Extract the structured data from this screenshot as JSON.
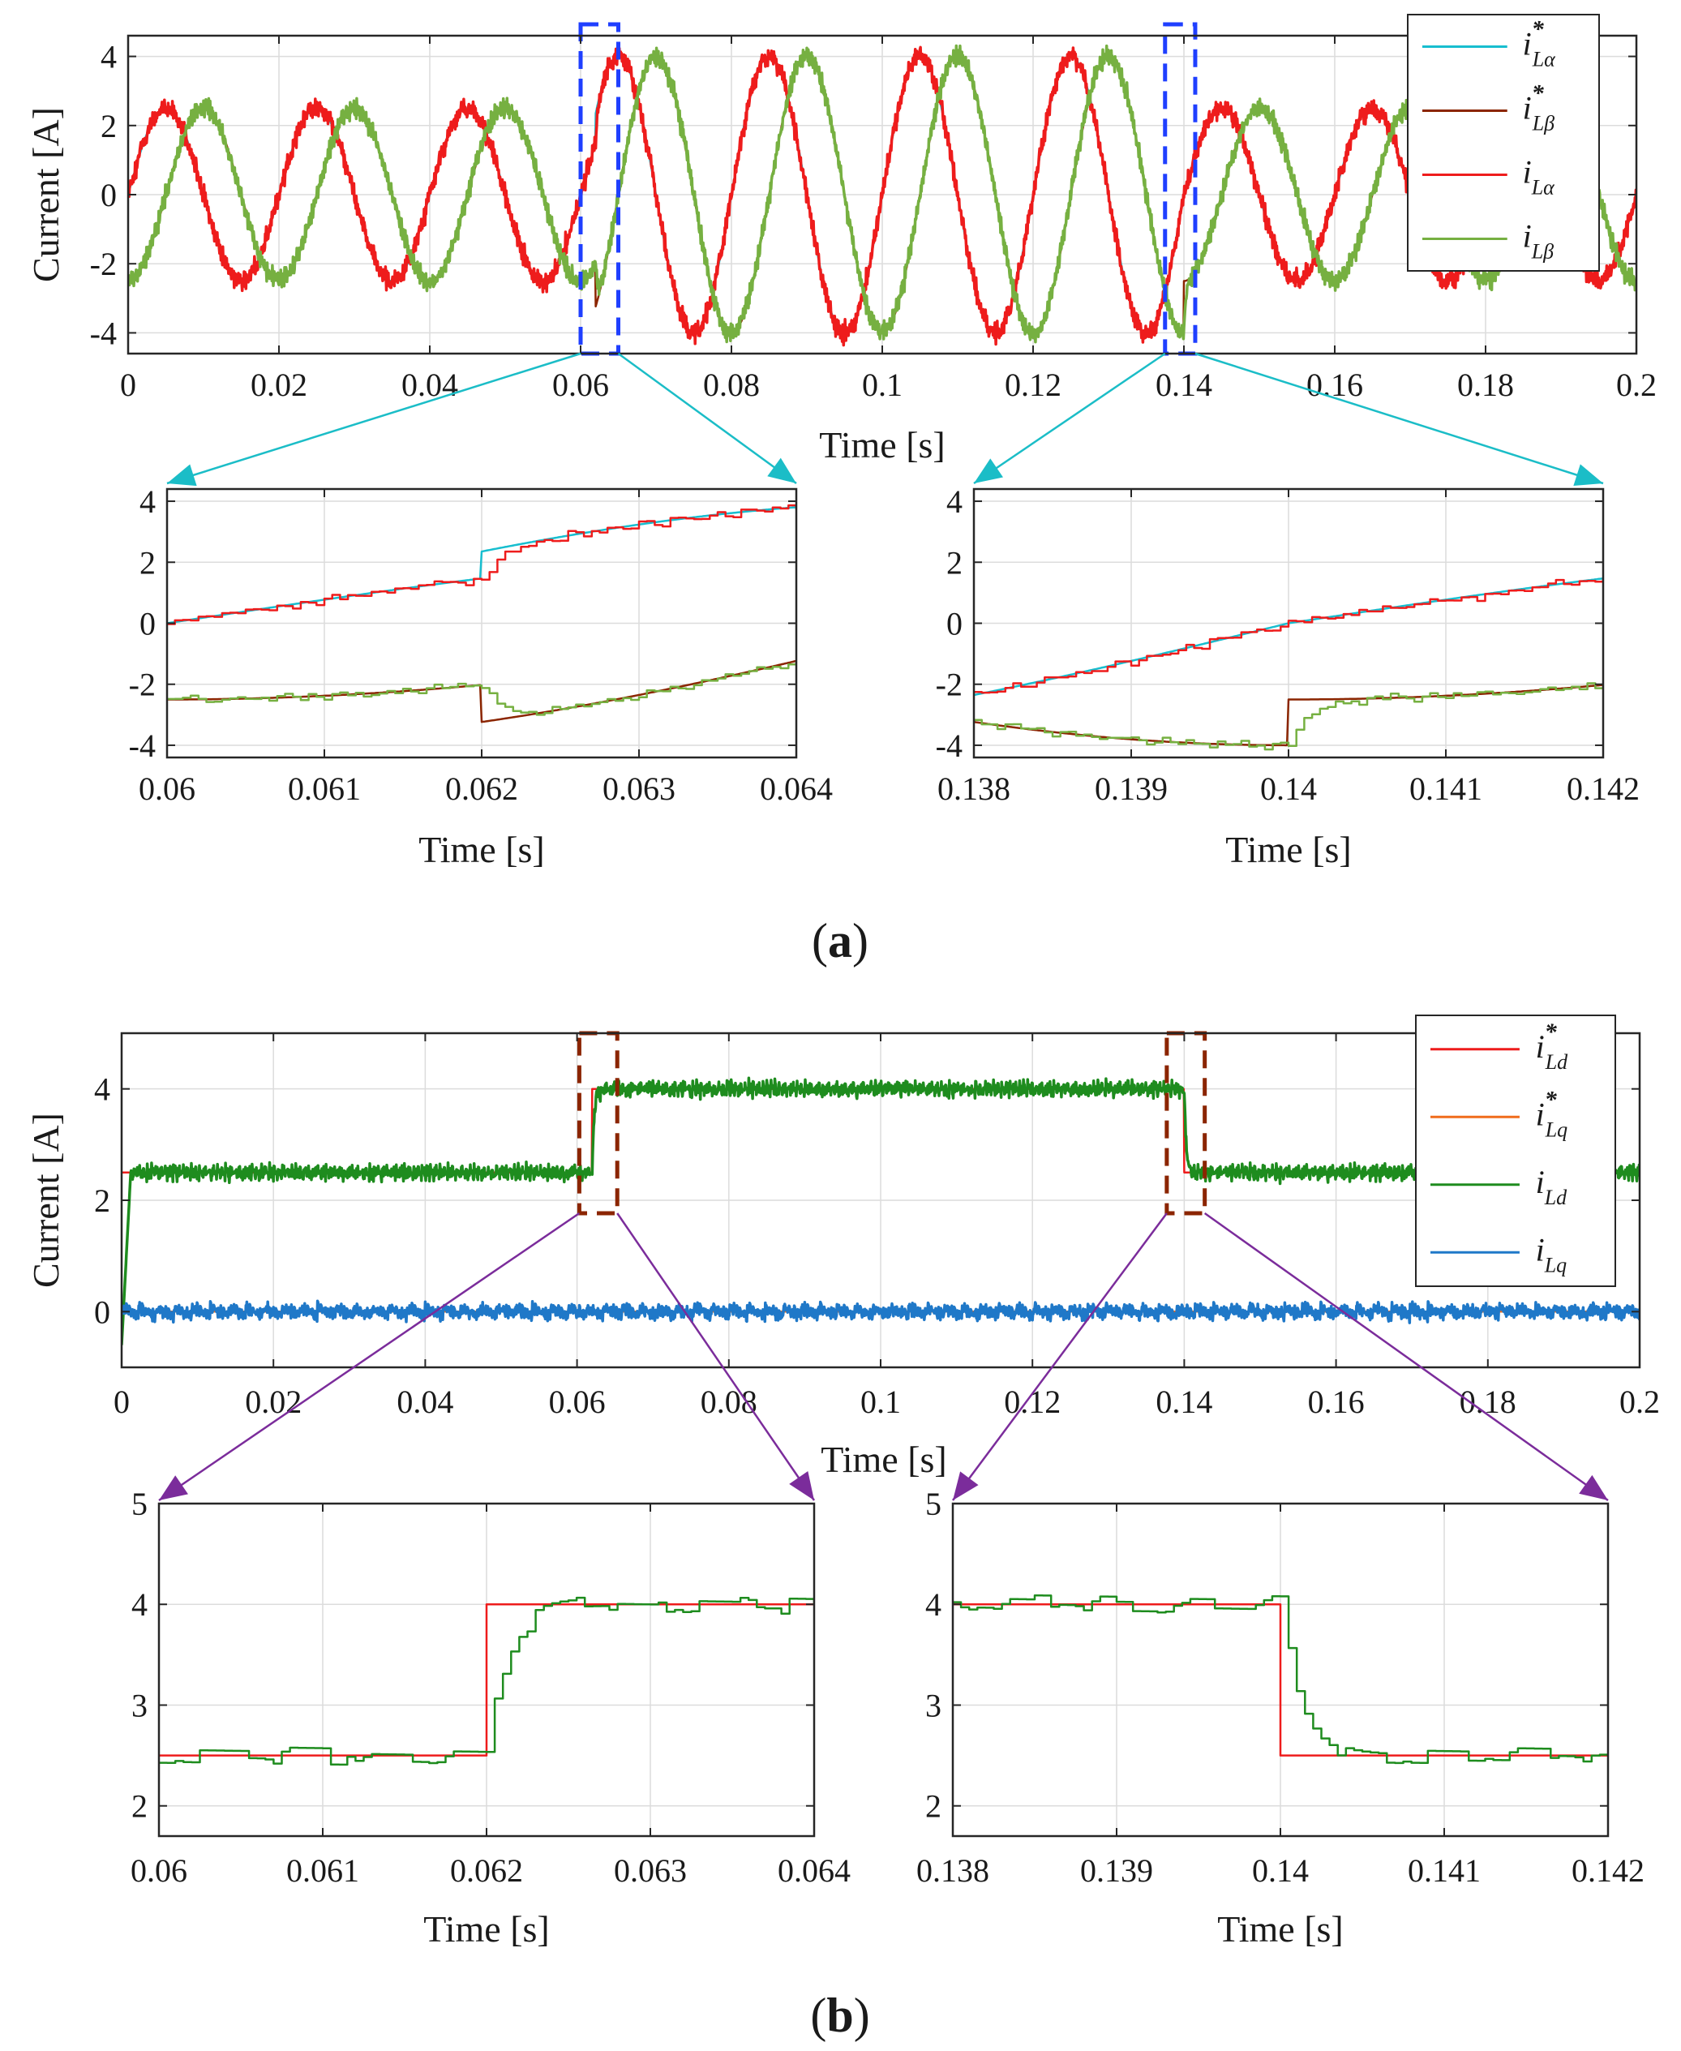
{
  "panels": [
    {
      "caption_open": "(",
      "caption_letter": "a",
      "caption_close": ")",
      "main": {
        "ylabel": "Current [A]",
        "xlabel": "Time [s]",
        "xlim": [
          0,
          0.2
        ],
        "ylim": [
          -4.6,
          4.6
        ],
        "xticks": [
          0,
          0.02,
          0.04,
          0.06,
          0.08,
          0.1,
          0.12,
          0.14,
          0.16,
          0.18,
          0.2
        ],
        "xtick_labels": [
          "0",
          "0.02",
          "0.04",
          "0.06",
          "0.08",
          "0.1",
          "0.12",
          "0.14",
          "0.16",
          "0.18",
          "0.2"
        ],
        "yticks": [
          -4,
          -2,
          0,
          2,
          4
        ],
        "ytick_labels": [
          "-4",
          "-2",
          "0",
          "2",
          "4"
        ],
        "legend": [
          {
            "sym": "i",
            "sup": "*",
            "sub": "Lα",
            "color": "#17becf"
          },
          {
            "sym": "i",
            "sup": "*",
            "sub": "Lβ",
            "color": "#8b2500"
          },
          {
            "sym": "i",
            "sup": "",
            "sub": "Lα",
            "color": "#ee1c1c"
          },
          {
            "sym": "i",
            "sup": "",
            "sub": "Lβ",
            "color": "#76b041"
          }
        ],
        "zoom_boxes": [
          [
            0.06,
            0.065
          ],
          [
            0.1375,
            0.1415
          ]
        ],
        "zoom_color": "#1f3fff",
        "arrow_color": "#1bbdc7"
      },
      "zooms": [
        {
          "xlim": [
            0.06,
            0.064
          ],
          "ylim": [
            -4.4,
            4.4
          ],
          "xticks": [
            0.06,
            0.061,
            0.062,
            0.063,
            0.064
          ],
          "xtick_labels": [
            "0.06",
            "0.061",
            "0.062",
            "0.063",
            "0.064"
          ],
          "yticks": [
            -4,
            -2,
            0,
            2,
            4
          ],
          "ytick_labels": [
            "-4",
            "-2",
            "0",
            "2",
            "4"
          ],
          "xlabel": "Time [s]"
        },
        {
          "xlim": [
            0.138,
            0.142
          ],
          "ylim": [
            -4.4,
            4.4
          ],
          "xticks": [
            0.138,
            0.139,
            0.14,
            0.141,
            0.142
          ],
          "xtick_labels": [
            "0.138",
            "0.139",
            "0.14",
            "0.141",
            "0.142"
          ],
          "yticks": [
            -4,
            -2,
            0,
            2,
            4
          ],
          "ytick_labels": [
            "-4",
            "-2",
            "0",
            "2",
            "4"
          ],
          "xlabel": "Time [s]"
        }
      ]
    },
    {
      "caption_open": "(",
      "caption_letter": "b",
      "caption_close": ")",
      "main": {
        "ylabel": "Current [A]",
        "xlabel": "Time [s]",
        "xlim": [
          0,
          0.2
        ],
        "ylim": [
          -1.0,
          5.0
        ],
        "xticks": [
          0,
          0.02,
          0.04,
          0.06,
          0.08,
          0.1,
          0.12,
          0.14,
          0.16,
          0.18,
          0.2
        ],
        "xtick_labels": [
          "0",
          "0.02",
          "0.04",
          "0.06",
          "0.08",
          "0.1",
          "0.12",
          "0.14",
          "0.16",
          "0.18",
          "0.2"
        ],
        "yticks": [
          0,
          2,
          4
        ],
        "ytick_labels": [
          "0",
          "2",
          "4"
        ],
        "legend": [
          {
            "sym": "i",
            "sup": "*",
            "sub": "Ld",
            "color": "#ee1c1c"
          },
          {
            "sym": "i",
            "sup": "*",
            "sub": "Lq",
            "color": "#f06c1c"
          },
          {
            "sym": "i",
            "sup": "",
            "sub": "Ld",
            "color": "#1e8c1e"
          },
          {
            "sym": "i",
            "sup": "",
            "sub": "Lq",
            "color": "#1f78c8"
          }
        ],
        "zoom_boxes": [
          [
            0.0603,
            0.0653
          ],
          [
            0.1377,
            0.1427
          ]
        ],
        "zoom_color": "#8b2500",
        "arrow_color": "#7b2c9b"
      },
      "zooms": [
        {
          "xlim": [
            0.06,
            0.064
          ],
          "ylim": [
            1.7,
            5.0
          ],
          "xticks": [
            0.06,
            0.061,
            0.062,
            0.063,
            0.064
          ],
          "xtick_labels": [
            "0.06",
            "0.061",
            "0.062",
            "0.063",
            "0.064"
          ],
          "yticks": [
            2,
            3,
            4,
            5
          ],
          "ytick_labels": [
            "2",
            "3",
            "4",
            "5"
          ],
          "xlabel": "Time [s]"
        },
        {
          "xlim": [
            0.138,
            0.142
          ],
          "ylim": [
            1.7,
            5.0
          ],
          "xticks": [
            0.138,
            0.139,
            0.14,
            0.141,
            0.142
          ],
          "xtick_labels": [
            "0.138",
            "0.139",
            "0.14",
            "0.141",
            "0.142"
          ],
          "yticks": [
            2,
            3,
            4,
            5
          ],
          "ytick_labels": [
            "2",
            "3",
            "4",
            "5"
          ],
          "xlabel": "Time [s]"
        }
      ]
    }
  ],
  "chart_data": [
    {
      "type": "line",
      "ylabel": "Current [A]",
      "xlabel": "Time [s]",
      "xlim": [
        0,
        0.2
      ],
      "ylim": [
        -4.6,
        4.6
      ],
      "grid": true,
      "legend": "top-right",
      "series": [
        {
          "name": "i*_Lα",
          "color": "#17becf",
          "kind": "sinusoid",
          "frequency_hz": 50,
          "phase": "sin",
          "amplitude_segments": [
            [
              0,
              0.062,
              2.5
            ],
            [
              0.062,
              0.14,
              4.0
            ],
            [
              0.14,
              0.2,
              2.5
            ]
          ]
        },
        {
          "name": "i*_Lβ",
          "color": "#8b2500",
          "kind": "sinusoid",
          "frequency_hz": 50,
          "phase": "-cos",
          "amplitude_segments": [
            [
              0,
              0.062,
              2.5
            ],
            [
              0.062,
              0.14,
              4.0
            ],
            [
              0.14,
              0.2,
              2.5
            ]
          ]
        },
        {
          "name": "i_Lα",
          "color": "#ee1c1c",
          "kind": "measured",
          "tracks": "i*_Lα"
        },
        {
          "name": "i_Lβ",
          "color": "#76b041",
          "kind": "measured",
          "tracks": "i*_Lβ"
        }
      ]
    },
    {
      "type": "line",
      "ylabel": "Current [A]",
      "xlabel": "Time [s]",
      "xlim": [
        0,
        0.2
      ],
      "ylim": [
        -1.0,
        5.0
      ],
      "grid": true,
      "legend": "top-right",
      "series": [
        {
          "name": "i*_Ld",
          "color": "#ee1c1c",
          "x": [
            0,
            0.062,
            0.062,
            0.14,
            0.14,
            0.2
          ],
          "y": [
            2.5,
            2.5,
            4.0,
            4.0,
            2.5,
            2.5
          ]
        },
        {
          "name": "i*_Lq",
          "color": "#f06c1c",
          "x": [
            0,
            0.2
          ],
          "y": [
            0,
            0
          ]
        },
        {
          "name": "i_Ld",
          "color": "#1e8c1e",
          "kind": "measured",
          "tracks": "i*_Ld"
        },
        {
          "name": "i_Lq",
          "color": "#1f78c8",
          "kind": "measured",
          "tracks": "i*_Lq"
        }
      ]
    }
  ]
}
